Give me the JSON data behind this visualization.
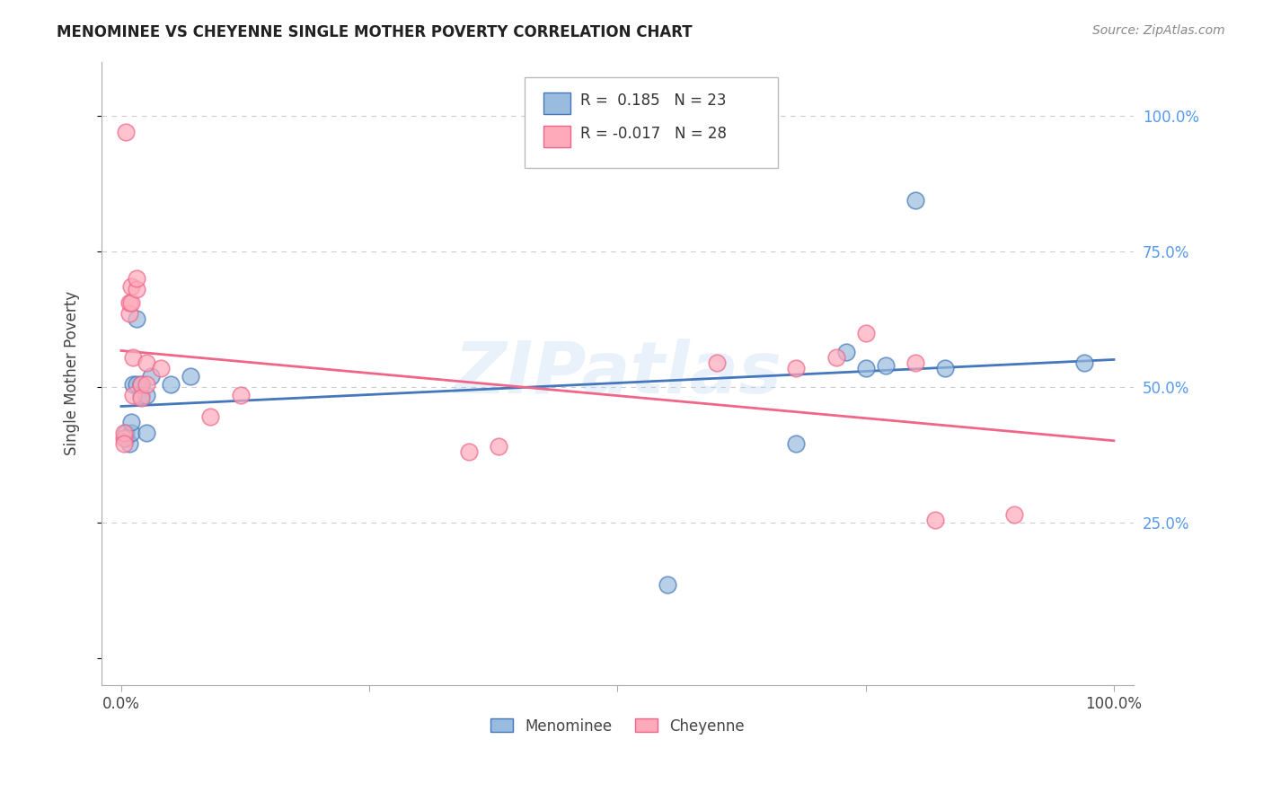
{
  "title": "MENOMINEE VS CHEYENNE SINGLE MOTHER POVERTY CORRELATION CHART",
  "source": "Source: ZipAtlas.com",
  "ylabel": "Single Mother Poverty",
  "legend_label1": "Menominee",
  "legend_label2": "Cheyenne",
  "R1": 0.185,
  "N1": 23,
  "R2": -0.017,
  "N2": 28,
  "color_blue": "#99BBDD",
  "color_pink": "#FFAABB",
  "line_blue": "#4477BB",
  "line_pink": "#EE6688",
  "watermark": "ZIPatlas",
  "menominee_x": [
    0.005,
    0.005,
    0.008,
    0.01,
    0.01,
    0.012,
    0.015,
    0.015,
    0.02,
    0.02,
    0.025,
    0.025,
    0.03,
    0.05,
    0.07,
    0.55,
    0.68,
    0.73,
    0.75,
    0.77,
    0.8,
    0.83,
    0.97
  ],
  "menominee_y": [
    0.405,
    0.415,
    0.395,
    0.415,
    0.435,
    0.505,
    0.625,
    0.505,
    0.505,
    0.485,
    0.415,
    0.485,
    0.52,
    0.505,
    0.52,
    0.135,
    0.395,
    0.565,
    0.535,
    0.54,
    0.845,
    0.535,
    0.545
  ],
  "cheyenne_x": [
    0.003,
    0.003,
    0.003,
    0.005,
    0.008,
    0.008,
    0.01,
    0.01,
    0.012,
    0.012,
    0.015,
    0.015,
    0.02,
    0.02,
    0.025,
    0.025,
    0.04,
    0.09,
    0.12,
    0.35,
    0.38,
    0.6,
    0.68,
    0.72,
    0.75,
    0.8,
    0.82,
    0.9
  ],
  "cheyenne_y": [
    0.405,
    0.415,
    0.395,
    0.97,
    0.635,
    0.655,
    0.655,
    0.685,
    0.485,
    0.555,
    0.68,
    0.7,
    0.505,
    0.48,
    0.545,
    0.505,
    0.535,
    0.445,
    0.485,
    0.38,
    0.39,
    0.545,
    0.535,
    0.555,
    0.6,
    0.545,
    0.255,
    0.265
  ],
  "ytick_values": [
    0.0,
    0.25,
    0.5,
    0.75,
    1.0
  ],
  "ytick_labels": [
    "",
    "25.0%",
    "50.0%",
    "75.0%",
    "100.0%"
  ],
  "xtick_values": [
    0.0,
    0.25,
    0.5,
    0.75,
    1.0
  ],
  "xlim": [
    -0.02,
    1.02
  ],
  "ylim": [
    -0.05,
    1.1
  ],
  "background_color": "#FFFFFF",
  "grid_color": "#CCCCCC"
}
